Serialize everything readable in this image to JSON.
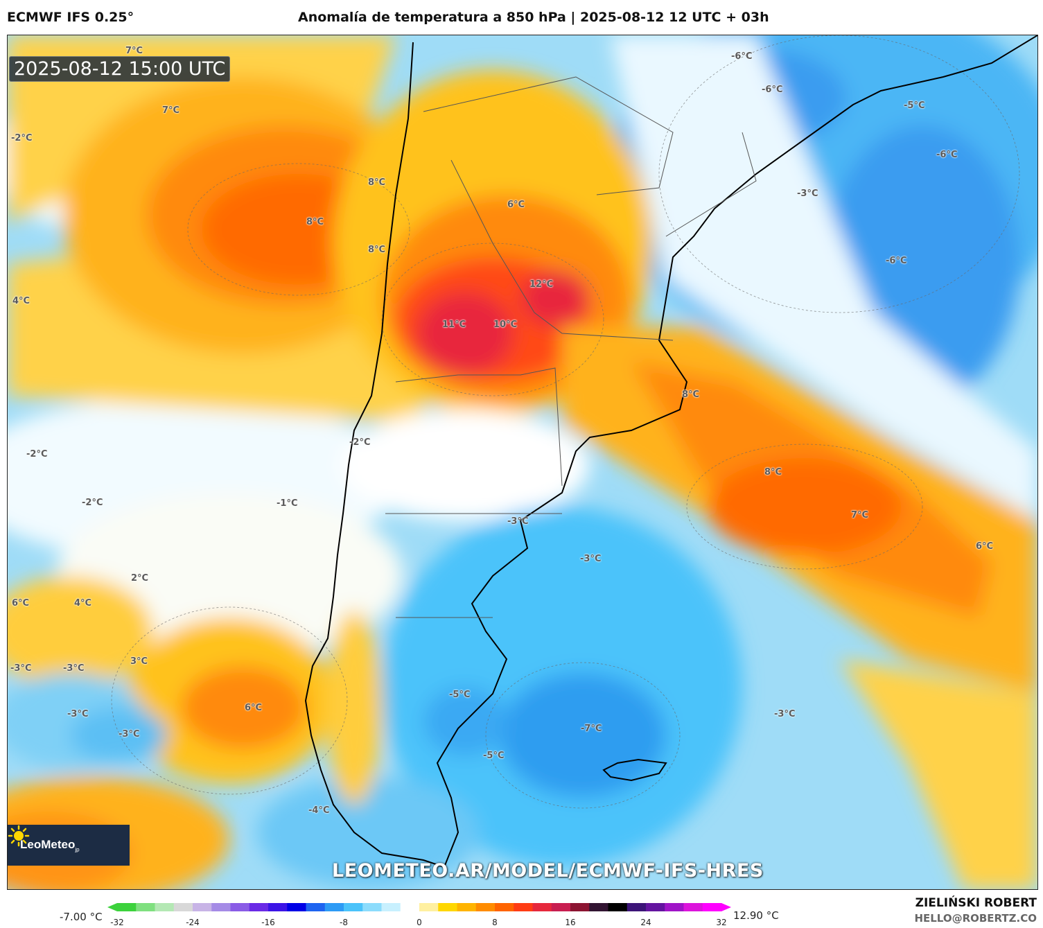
{
  "header": {
    "model": "ECMWF IFS 0.25°",
    "title": "Anomalía de temperatura a 850 hPa | 2025-08-12 12 UTC + 03h"
  },
  "map": {
    "valid_time": "2025-08-12 15:00 UTC",
    "watermark": "LEOMETEO.AR/MODEL/ECMWF-IFS-HRES",
    "logo": {
      "name": "LeoMeteo",
      "suffix": "jp"
    },
    "labels": [
      {
        "text": "7°C"
      },
      {
        "text": "7°C"
      },
      {
        "text": "-2°C"
      },
      {
        "text": "8°C"
      },
      {
        "text": "8°C"
      },
      {
        "text": "8°C"
      },
      {
        "text": "6°C"
      },
      {
        "text": "12°C"
      },
      {
        "text": "11°C"
      },
      {
        "text": "10°C"
      },
      {
        "text": "4°C"
      },
      {
        "text": "-6°C"
      },
      {
        "text": "-6°C"
      },
      {
        "text": "-5°C"
      },
      {
        "text": "-6°C"
      },
      {
        "text": "-3°C"
      },
      {
        "text": "-6°C"
      },
      {
        "text": "8°C"
      },
      {
        "text": "-2°C"
      },
      {
        "text": "-2°C"
      },
      {
        "text": "-2°C"
      },
      {
        "text": "-1°C"
      },
      {
        "text": "8°C"
      },
      {
        "text": "7°C"
      },
      {
        "text": "6°C"
      },
      {
        "text": "-3°C"
      },
      {
        "text": "-3°C"
      },
      {
        "text": "2°C"
      },
      {
        "text": "6°C"
      },
      {
        "text": "4°C"
      },
      {
        "text": "3°C"
      },
      {
        "text": "-3°C"
      },
      {
        "text": "-3°C"
      },
      {
        "text": "-3°C"
      },
      {
        "text": "-3°C"
      },
      {
        "text": "6°C"
      },
      {
        "text": "-5°C"
      },
      {
        "text": "-7°C"
      },
      {
        "text": "-5°C"
      },
      {
        "text": "-3°C"
      },
      {
        "text": "-4°C"
      }
    ]
  },
  "colorbar": {
    "min_label": "-7.00 °C",
    "max_label": "12.90 °C",
    "ticks": [
      "-32",
      "-24",
      "-16",
      "-8",
      "0",
      "8",
      "16",
      "24",
      "32"
    ],
    "colors": [
      "#3cd23c",
      "#7fe07f",
      "#b4e8b4",
      "#d8d8d8",
      "#c8b4e6",
      "#a58be6",
      "#8a5ce6",
      "#6a2ae6",
      "#3c14e6",
      "#0000e6",
      "#1e64f0",
      "#2d9bf5",
      "#4bc3fa",
      "#8cdcfc",
      "#c8f0fe",
      "#ffffff",
      "#fff0a0",
      "#ffd700",
      "#ffb400",
      "#ff8c00",
      "#ff6400",
      "#ff3c14",
      "#e6283c",
      "#c81e50",
      "#8c1432",
      "#321432",
      "#000000",
      "#3c1478",
      "#6414a0",
      "#a014c8",
      "#dc14dc",
      "#ff00ff"
    ]
  },
  "footer": {
    "author": "ZIELIŃSKI ROBERT",
    "email": "HELLO@ROBERTZ.CO"
  }
}
